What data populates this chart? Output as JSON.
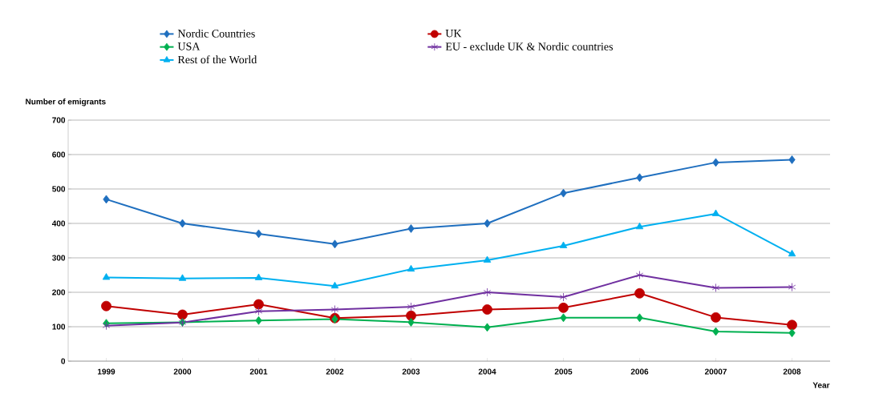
{
  "chart_data": {
    "type": "line",
    "xlabel": "Year",
    "ylabel": "Number of emigrants",
    "categories": [
      "1999",
      "2000",
      "2001",
      "2002",
      "2003",
      "2004",
      "2005",
      "2006",
      "20007",
      "2008"
    ],
    "ylim": [
      0,
      700
    ],
    "yticks": [
      0,
      100,
      200,
      300,
      400,
      500,
      600,
      700
    ],
    "grid": "y",
    "legend": "top",
    "line_style": "solid",
    "series": [
      {
        "name": "Nordic Countries",
        "color": "#1f6fbf",
        "marker": "diamond",
        "values": [
          470,
          400,
          370,
          340,
          385,
          400,
          488,
          533,
          577,
          585
        ]
      },
      {
        "name": "UK",
        "color": "#c00000",
        "marker": "circle",
        "values": [
          160,
          135,
          165,
          125,
          132,
          150,
          155,
          197,
          127,
          105
        ]
      },
      {
        "name": "USA",
        "color": "#00b050",
        "marker": "diamond",
        "values": [
          110,
          113,
          118,
          122,
          113,
          98,
          126,
          126,
          86,
          82
        ]
      },
      {
        "name": "EU - exclude UK & Nordic countries",
        "color": "#7030a0",
        "marker": "cross",
        "values": [
          103,
          112,
          145,
          150,
          158,
          200,
          186,
          250,
          213,
          215
        ]
      },
      {
        "name": "Rest of the World",
        "color": "#00b0f0",
        "marker": "triangle",
        "values": [
          243,
          240,
          242,
          218,
          267,
          293,
          335,
          390,
          428,
          311
        ]
      }
    ]
  }
}
